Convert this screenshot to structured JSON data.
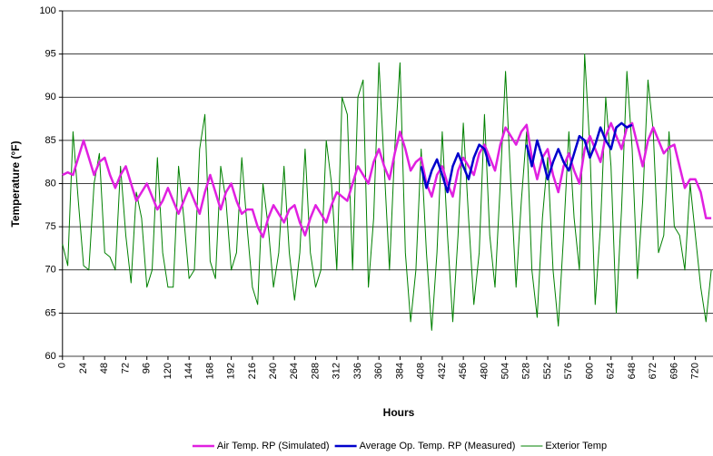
{
  "chart_data": {
    "type": "line",
    "x_label": "Hours",
    "y_label": "Temperature (°F)",
    "xlim": [
      0,
      740
    ],
    "ylim": [
      60,
      100
    ],
    "xticks": [
      0,
      24,
      48,
      72,
      96,
      120,
      144,
      168,
      192,
      216,
      240,
      264,
      288,
      312,
      336,
      360,
      384,
      408,
      432,
      456,
      480,
      504,
      528,
      552,
      576,
      600,
      624,
      648,
      672,
      696,
      720
    ],
    "yticks": [
      60,
      65,
      70,
      75,
      80,
      85,
      90,
      95,
      100
    ],
    "grid": true,
    "legend": "bottom",
    "x": [
      0,
      6,
      12,
      18,
      24,
      30,
      36,
      42,
      48,
      54,
      60,
      66,
      72,
      78,
      84,
      90,
      96,
      102,
      108,
      114,
      120,
      126,
      132,
      138,
      144,
      150,
      156,
      162,
      168,
      174,
      180,
      186,
      192,
      198,
      204,
      210,
      216,
      222,
      228,
      234,
      240,
      246,
      252,
      258,
      264,
      270,
      276,
      282,
      288,
      294,
      300,
      306,
      312,
      318,
      324,
      330,
      336,
      342,
      348,
      354,
      360,
      366,
      372,
      378,
      384,
      390,
      396,
      402,
      408,
      414,
      420,
      426,
      432,
      438,
      444,
      450,
      456,
      462,
      468,
      474,
      480,
      486,
      492,
      498,
      504,
      510,
      516,
      522,
      528,
      534,
      540,
      546,
      552,
      558,
      564,
      570,
      576,
      582,
      588,
      594,
      600,
      606,
      612,
      618,
      624,
      630,
      636,
      642,
      648,
      654,
      660,
      666,
      672,
      678,
      684,
      690,
      696,
      702,
      708,
      714,
      720,
      726,
      732,
      738
    ],
    "series": [
      {
        "name": "Air Temp. RP (Simulated)",
        "color": "#e020e0",
        "width": 2.5,
        "values": [
          81,
          81.3,
          81,
          83,
          85,
          83,
          81,
          82.5,
          83,
          81,
          79.5,
          81,
          82,
          80,
          78,
          79,
          80,
          78.5,
          77,
          78,
          79.5,
          78,
          76.5,
          78,
          79.5,
          78,
          76.5,
          79,
          81,
          79,
          77,
          79,
          80,
          78,
          76.5,
          77,
          77,
          75,
          73.8,
          76,
          77.5,
          76.5,
          75.5,
          77,
          77.5,
          75.5,
          74,
          76,
          77.5,
          76.5,
          75.5,
          77.5,
          79,
          78.5,
          78,
          80,
          82,
          81,
          80,
          82.5,
          84,
          82,
          80.5,
          83.5,
          86,
          84,
          81.5,
          82.5,
          83,
          80,
          78.5,
          81,
          82,
          80,
          78.5,
          81.5,
          83,
          82,
          81,
          83.5,
          84.5,
          83,
          81.5,
          84.5,
          86.5,
          85.5,
          84.5,
          86,
          86.8,
          83,
          80.5,
          83,
          84,
          81,
          79,
          82,
          83.5,
          81.5,
          80,
          84,
          85.5,
          84,
          82.5,
          85.5,
          87,
          85.5,
          84,
          86.5,
          87,
          84.5,
          82,
          85,
          86.5,
          85,
          83.5,
          84.2,
          84.5,
          82,
          79.5,
          80.5,
          80.5,
          79,
          76,
          76
        ]
      },
      {
        "name": "Average Op. Temp. RP  (Measured)",
        "color": "#0000cc",
        "width": 2.5,
        "values": [
          null,
          null,
          null,
          null,
          null,
          null,
          null,
          null,
          null,
          null,
          null,
          null,
          null,
          null,
          null,
          null,
          null,
          null,
          null,
          null,
          null,
          null,
          null,
          null,
          null,
          null,
          null,
          null,
          null,
          null,
          null,
          null,
          null,
          null,
          null,
          null,
          null,
          null,
          null,
          null,
          null,
          null,
          null,
          null,
          null,
          null,
          null,
          null,
          null,
          null,
          null,
          null,
          null,
          null,
          null,
          null,
          null,
          null,
          null,
          null,
          null,
          null,
          null,
          null,
          null,
          null,
          null,
          null,
          82,
          79.5,
          81.5,
          82.8,
          81,
          79,
          82,
          83.5,
          82,
          80.5,
          83,
          84.5,
          84,
          82,
          null,
          null,
          null,
          null,
          null,
          null,
          84.5,
          82,
          85,
          83,
          80.5,
          82.5,
          84,
          82.5,
          81.5,
          83.5,
          85.5,
          85,
          83,
          84.5,
          86.5,
          85,
          84,
          86.5,
          87,
          86.5,
          86.8,
          null,
          null,
          null,
          null,
          null,
          null,
          null,
          null,
          null,
          null,
          null,
          null,
          null,
          null,
          null
        ]
      },
      {
        "name": "Exterior Temp",
        "color": "#008000",
        "width": 1,
        "values": [
          73,
          70.5,
          86,
          78,
          70.5,
          70,
          80,
          83.5,
          72,
          71.5,
          70,
          82,
          74,
          68.5,
          79,
          76,
          68,
          70,
          83,
          72,
          68,
          68,
          82,
          76,
          69,
          70,
          84,
          88,
          71,
          69,
          82,
          78,
          70,
          72,
          83,
          75,
          68,
          66,
          80,
          75,
          68,
          72,
          82,
          72,
          66.5,
          72,
          84,
          72,
          68,
          70,
          85,
          80,
          70,
          90,
          88,
          70,
          90,
          92,
          68,
          76,
          94,
          82,
          70,
          84,
          94,
          72,
          64,
          70,
          84,
          72,
          63,
          72,
          86,
          74,
          64,
          74,
          87,
          76,
          66,
          72,
          88,
          74,
          68,
          80,
          93,
          80,
          68,
          78,
          86,
          70,
          64.5,
          76,
          83,
          70,
          63.5,
          74,
          86,
          76,
          70,
          95,
          84,
          66,
          75,
          90,
          82,
          65,
          77,
          93,
          84,
          69,
          78,
          92,
          86,
          72,
          74,
          86,
          75,
          74,
          70,
          80,
          74,
          68,
          64,
          70
        ]
      }
    ]
  }
}
